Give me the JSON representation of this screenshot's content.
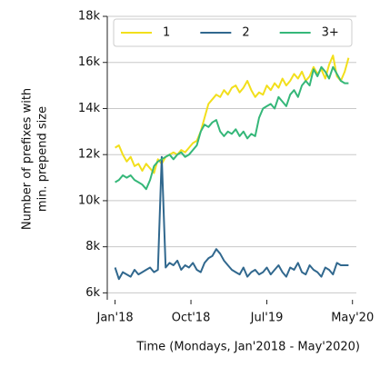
{
  "chart_data": {
    "type": "line",
    "y_label": [
      "Number of prefixes with",
      "min. prepend size"
    ],
    "x_label": "Time (Mondays, Jan'2018 - May'2020)",
    "x": [
      0,
      2,
      4,
      6,
      8,
      10,
      12,
      14,
      16,
      18,
      20,
      22,
      24,
      26,
      28,
      30,
      32,
      34,
      36,
      38,
      40,
      42,
      44,
      46,
      48,
      50,
      52,
      54,
      56,
      58,
      60,
      62,
      64,
      66,
      68,
      70,
      72,
      74,
      76,
      78,
      80,
      82,
      84,
      86,
      88,
      90,
      92,
      94,
      96,
      98,
      100,
      102,
      104,
      106,
      108,
      110,
      112,
      114,
      116,
      118,
      120
    ],
    "xlim": [
      -4,
      124
    ],
    "xticks": [
      {
        "value": 0,
        "label": "Jan'18"
      },
      {
        "value": 39,
        "label": "Oct'18"
      },
      {
        "value": 78,
        "label": "Jul'19"
      },
      {
        "value": 122,
        "label": "May'20"
      }
    ],
    "ylim": [
      5700,
      18000
    ],
    "yticks": [
      {
        "value": 6000,
        "label": "6k"
      },
      {
        "value": 8000,
        "label": "8k"
      },
      {
        "value": 10000,
        "label": "10k"
      },
      {
        "value": 12000,
        "label": "12k"
      },
      {
        "value": 14000,
        "label": "14k"
      },
      {
        "value": 16000,
        "label": "16k"
      },
      {
        "value": 18000,
        "label": "18k"
      }
    ],
    "grid": true,
    "legend": "top",
    "series": [
      {
        "name": "1",
        "color": "#f2df1c",
        "values": [
          12300,
          12400,
          12000,
          11700,
          11900,
          11500,
          11600,
          11300,
          11600,
          11400,
          11200,
          11800,
          11600,
          11900,
          12000,
          12100,
          12000,
          12200,
          12100,
          12300,
          12500,
          12600,
          13000,
          13600,
          14200,
          14400,
          14600,
          14500,
          14800,
          14600,
          14900,
          15000,
          14700,
          14900,
          15200,
          14800,
          14500,
          14700,
          14600,
          15000,
          14800,
          15100,
          14900,
          15300,
          15000,
          15200,
          15500,
          15300,
          15600,
          15200,
          15400,
          15800,
          15500,
          15700,
          15300,
          15900,
          16300,
          15400,
          15200,
          15600,
          16200
        ]
      },
      {
        "name": "2",
        "color": "#31688e",
        "values": [
          7100,
          6600,
          6900,
          6800,
          6700,
          7000,
          6800,
          6900,
          7000,
          7100,
          6900,
          7000,
          11900,
          7100,
          7300,
          7200,
          7400,
          7000,
          7200,
          7100,
          7300,
          7000,
          6900,
          7300,
          7500,
          7600,
          7900,
          7700,
          7400,
          7200,
          7000,
          6900,
          6800,
          7100,
          6700,
          6900,
          7000,
          6800,
          6900,
          7100,
          6800,
          7000,
          7200,
          6900,
          6700,
          7100,
          7000,
          7300,
          6900,
          6800,
          7200,
          7000,
          6900,
          6700,
          7100,
          7000,
          6800,
          7300,
          7200,
          7200,
          7200
        ]
      },
      {
        "name": "3+",
        "color": "#35b779",
        "values": [
          10800,
          10900,
          11100,
          11000,
          11100,
          10900,
          10800,
          10700,
          10500,
          10900,
          11500,
          11700,
          11800,
          11900,
          12000,
          11800,
          12000,
          12100,
          11900,
          12000,
          12200,
          12400,
          13000,
          13300,
          13200,
          13400,
          13500,
          13000,
          12800,
          13000,
          12900,
          13100,
          12800,
          13000,
          12700,
          12900,
          12800,
          13600,
          14000,
          14100,
          14200,
          14000,
          14500,
          14300,
          14100,
          14600,
          14800,
          14500,
          15000,
          15200,
          15000,
          15700,
          15400,
          15800,
          15600,
          15300,
          15800,
          15500,
          15200,
          15100,
          15100
        ]
      }
    ]
  }
}
